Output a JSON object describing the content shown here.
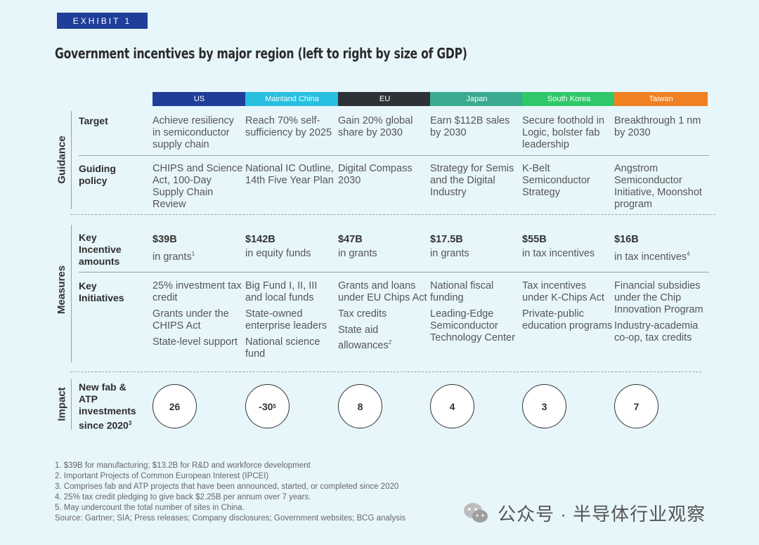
{
  "exhibit_label": "EXHIBIT 1",
  "title": "Government incentives by major region (left to right by size of GDP)",
  "regions": [
    {
      "name": "US",
      "color": "#1f3e9a"
    },
    {
      "name": "Mainland China",
      "color": "#27c0e0"
    },
    {
      "name": "EU",
      "color": "#2e3236"
    },
    {
      "name": "Japan",
      "color": "#3aab91"
    },
    {
      "name": "South Korea",
      "color": "#2fc76a"
    },
    {
      "name": "Taiwan",
      "color": "#f08122"
    }
  ],
  "sections": {
    "guidance": "Guidance",
    "measures": "Measures",
    "impact": "Impact"
  },
  "rows": {
    "target": {
      "label": "Target",
      "cells": [
        "Achieve resiliency in semiconductor supply chain",
        "Reach 70% self-sufficiency by 2025",
        "Gain 20% global share by 2030",
        "Earn $112B sales by 2030",
        "Secure foothold in Logic, bolster fab leadership",
        "Breakthrough 1 nm by 2030"
      ]
    },
    "policy": {
      "label": "Guiding policy",
      "cells": [
        "CHIPS and Science Act, 100-Day Supply Chain Review",
        "National IC Outline, 14th Five Year Plan",
        "Digital Compass 2030",
        "Strategy for Semis and the Digital Industry",
        "K-Belt Semiconductor Strategy",
        "Angstrom Semiconductor Initiative, Moonshot program"
      ]
    },
    "amounts": {
      "label": "Key Incentive amounts",
      "cells": [
        {
          "value": "$39B",
          "desc": "in grants",
          "note": "1"
        },
        {
          "value": "$142B",
          "desc": "in equity funds",
          "note": ""
        },
        {
          "value": "$47B",
          "desc": "in grants",
          "note": ""
        },
        {
          "value": "$17.5B",
          "desc": "in grants",
          "note": ""
        },
        {
          "value": "$55B",
          "desc": "in tax incentives",
          "note": ""
        },
        {
          "value": "$16B",
          "desc": "in tax incentives",
          "note": "4"
        }
      ]
    },
    "initiatives": {
      "label": "Key Initiatives",
      "cells": [
        [
          "25% investment tax credit",
          "Grants under the CHIPS Act",
          "State-level support"
        ],
        [
          "Big Fund I, II, III and local funds",
          "State-owned enterprise leaders",
          "National science fund"
        ],
        [
          "Grants and loans under EU Chips Act",
          "Tax credits",
          "State aid allowances"
        ],
        [
          "National fiscal funding",
          "Leading-Edge Semiconductor Technology Center"
        ],
        [
          "Tax incentives under K-Chips Act",
          "Private-public education programs"
        ],
        [
          "Financial subsidies under the Chip Innovation Program",
          "Industry-academia co-op, tax credits"
        ]
      ],
      "eu_last_note": "2"
    },
    "impact": {
      "label": "New fab & ATP investments since 2020",
      "label_note": "3",
      "cells": [
        {
          "value": "26",
          "note": ""
        },
        {
          "value": "-30",
          "note": "5"
        },
        {
          "value": "8",
          "note": ""
        },
        {
          "value": "4",
          "note": ""
        },
        {
          "value": "3",
          "note": ""
        },
        {
          "value": "7",
          "note": ""
        }
      ]
    }
  },
  "footnotes": [
    "1. $39B for manufacturing; $13.2B for R&D and workforce development",
    "2. Important Projects of Common European Interest (IPCEI)",
    "3. Comprises fab and ATP projects that have been announced, started, or completed since 2020",
    "4. 25% tax credit pledging to give back $2.25B per annum over 7 years.",
    "5. May undercount the total number of sites in China.",
    "Source: Gartner; SIA; Press releases; Company disclosures; Government websites; BCG analysis"
  ],
  "watermark": "公众号 · 半导体行业观察"
}
